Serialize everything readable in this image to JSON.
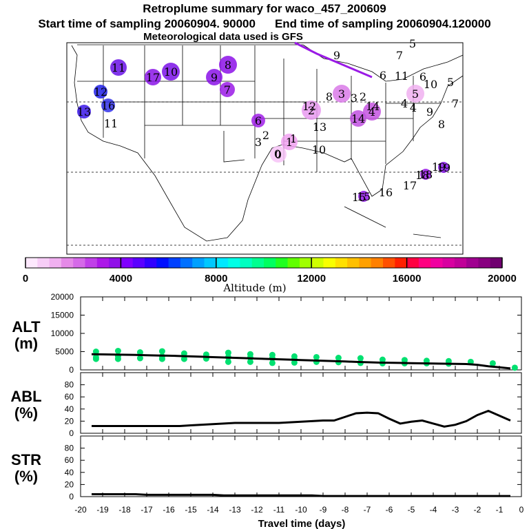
{
  "titles": {
    "line1": "Retroplume summary for waco_457_200609",
    "start": "Start time of sampling 20060904. 90000",
    "end": "End time of sampling 20060904.120000",
    "line3": "Meteorological data used is GFS"
  },
  "map": {
    "markers": [
      {
        "label": "0",
        "color": "#f7c3f7"
      },
      {
        "label": "1",
        "color": "#f0a0f0"
      },
      {
        "label": "2",
        "color": "#e899f0"
      },
      {
        "label": "3",
        "color": "#d97ae8"
      },
      {
        "label": "4",
        "color": "#c454e0"
      },
      {
        "label": "5",
        "color": "#f0b0f0"
      },
      {
        "label": "6",
        "color": "#a020e8"
      },
      {
        "label": "7",
        "color": "#9a1ae6"
      },
      {
        "label": "8",
        "color": "#8c10e8"
      },
      {
        "label": "9",
        "color": "#8a12e8"
      },
      {
        "label": "10",
        "color": "#7a10e8"
      },
      {
        "label": "11",
        "color": "#6810e6"
      },
      {
        "label": "12",
        "color": "#2020e8"
      },
      {
        "label": "13",
        "color": "#3a16e8"
      },
      {
        "label": "14",
        "color": "#c050e0"
      },
      {
        "label": "15",
        "color": "#9018e8"
      },
      {
        "label": "16",
        "color": "#3030e8"
      },
      {
        "label": "17",
        "color": "#8a14e8"
      },
      {
        "label": "18",
        "color": "#9a1ae6"
      },
      {
        "label": "19",
        "color": "#8410e8"
      }
    ]
  },
  "colorbar": {
    "ticks": [
      "0",
      "4000",
      "8000",
      "12000",
      "16000",
      "20000"
    ],
    "label": "Altitude (m)",
    "colors": [
      "#fde8fd",
      "#f7cdf7",
      "#f0b0f0",
      "#e58ae8",
      "#d56ae8",
      "#c040e8",
      "#ac18e8",
      "#9010e8",
      "#8000ff",
      "#5a00ff",
      "#3000ff",
      "#0010ff",
      "#0040ff",
      "#0070ff",
      "#00a0ff",
      "#00c8ff",
      "#00e8ff",
      "#00ffe6",
      "#00ffc0",
      "#00ff90",
      "#00ff60",
      "#20ff20",
      "#60ff00",
      "#a0ff00",
      "#d0ff00",
      "#f8ff00",
      "#ffe000",
      "#ffc000",
      "#ffa000",
      "#ff8000",
      "#ff5000",
      "#ff2000",
      "#ff0040",
      "#ff0080",
      "#f000a0",
      "#d800a0",
      "#c00098",
      "#a00090",
      "#880080",
      "#700070"
    ]
  },
  "chart_data": {
    "type": "line",
    "x": [
      -19.5,
      -19,
      -18.5,
      -18,
      -17.5,
      -17,
      -16.5,
      -16,
      -15.5,
      -15,
      -14.5,
      -14,
      -13.5,
      -13,
      -12.5,
      -12,
      -11.5,
      -11,
      -10.5,
      -10,
      -9.5,
      -9,
      -8.5,
      -8,
      -7.5,
      -7,
      -6.5,
      -6,
      -5.5,
      -5,
      -4.5,
      -4,
      -3.5,
      -3,
      -2.5,
      -2,
      -1.5,
      -1,
      -0.5
    ],
    "xticks": [
      "-20",
      "-19",
      "-18",
      "-17",
      "-16",
      "-15",
      "-14",
      "-13",
      "-12",
      "-11",
      "-10",
      "-9",
      "-8",
      "-7",
      "-6",
      "-5",
      "-4",
      "-3",
      "-2",
      "-1",
      "0"
    ],
    "xlim": [
      -20,
      0
    ],
    "xlabel": "Travel time (days)",
    "panels": [
      {
        "name": "ALT",
        "label_line1": "ALT",
        "label_line2": "(m)",
        "ylim": [
          0,
          20000
        ],
        "yticks": [
          "0",
          "5000",
          "10000",
          "15000",
          "20000"
        ],
        "series": [
          {
            "name": "mean",
            "values": [
              4300,
              4250,
              4200,
              4150,
              4100,
              4000,
              3950,
              3900,
              3800,
              3700,
              3600,
              3500,
              3400,
              3300,
              3200,
              3100,
              3000,
              2900,
              2800,
              2700,
              2600,
              2500,
              2400,
              2300,
              2200,
              2100,
              2000,
              1950,
              1900,
              1850,
              1800,
              1750,
              1700,
              1650,
              1600,
              1400,
              1000,
              700,
              400
            ]
          }
        ],
        "scatter_series": {
          "name": "samples",
          "color": "#00e070",
          "x": [
            -19.3,
            -19.3,
            -19.3,
            -18.3,
            -18.3,
            -18.3,
            -17.3,
            -17.3,
            -16.3,
            -16.3,
            -16.3,
            -15.3,
            -15.3,
            -14.3,
            -14.3,
            -13.3,
            -13.3,
            -13.3,
            -12.3,
            -12.3,
            -12.3,
            -11.3,
            -11.3,
            -11.3,
            -10.3,
            -10.3,
            -10.3,
            -9.3,
            -9.3,
            -8.3,
            -8.3,
            -7.3,
            -7.3,
            -6.3,
            -6.3,
            -5.3,
            -5.3,
            -4.3,
            -4.3,
            -3.3,
            -3.3,
            -2.3,
            -1.3,
            -0.3
          ],
          "values": [
            5000,
            3500,
            3000,
            5200,
            3800,
            3000,
            4800,
            3200,
            5100,
            3700,
            3000,
            4500,
            3000,
            4200,
            3100,
            4700,
            3500,
            2200,
            4300,
            3400,
            2200,
            4100,
            3200,
            1900,
            3700,
            2900,
            2000,
            3500,
            2200,
            3300,
            2100,
            3200,
            1900,
            2800,
            1800,
            2700,
            1800,
            2500,
            1800,
            2400,
            1700,
            2200,
            1800,
            600
          ]
        }
      },
      {
        "name": "ABL",
        "label_line1": "ABL",
        "label_line2": "(%)",
        "ylim": [
          0,
          100
        ],
        "yticks": [
          "0",
          "20",
          "40",
          "60",
          "80"
        ],
        "series": [
          {
            "name": "mean",
            "values": [
              12,
              12,
              12,
              12,
              12,
              12,
              12,
              12,
              12,
              13,
              14,
              15,
              16,
              17,
              17,
              17,
              17,
              17,
              18,
              19,
              20,
              21,
              21,
              27,
              33,
              34,
              33,
              24,
              16,
              19,
              21,
              16,
              11,
              14,
              20,
              30,
              37,
              29,
              21
            ]
          }
        ]
      },
      {
        "name": "STR",
        "label_line1": "STR",
        "label_line2": "(%)",
        "ylim": [
          0,
          100
        ],
        "yticks": [
          "0",
          "20",
          "40",
          "60",
          "80"
        ],
        "series": [
          {
            "name": "mean",
            "values": [
              4,
              4,
              4,
              4,
              4,
              3,
              3,
              3,
              3,
              3,
              3,
              3,
              2,
              2,
              2,
              2,
              2,
              2,
              2,
              2,
              2,
              1,
              1,
              1,
              1,
              1,
              1,
              1,
              1,
              1,
              1,
              1,
              1,
              1,
              1,
              1,
              1,
              1,
              1
            ]
          }
        ]
      }
    ]
  }
}
